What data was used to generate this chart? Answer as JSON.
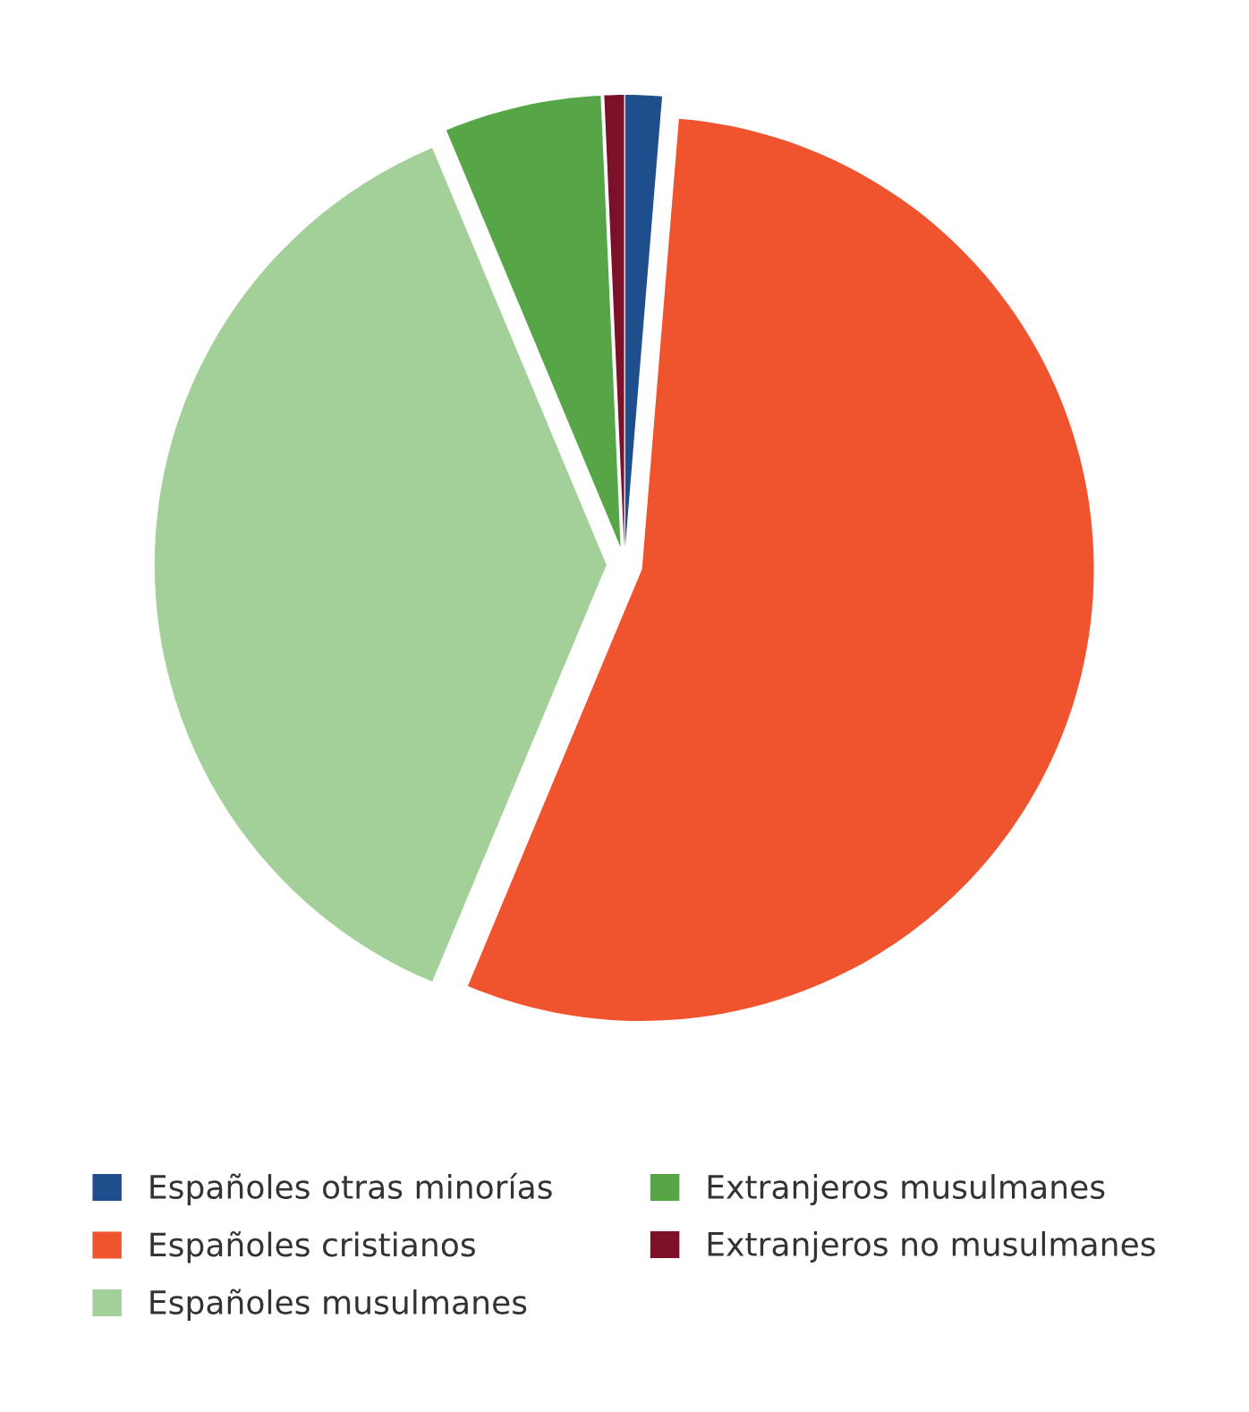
{
  "chart_data": {
    "type": "pie",
    "categories": [
      "Españoles otras minorías",
      "Españoles cristianos",
      "Españoles musulmanes",
      "Extranjeros musulmanes",
      "Extranjeros no musulmanes"
    ],
    "values": [
      1.3,
      55.0,
      37.4,
      5.6,
      0.7
    ],
    "colors": [
      "#1f4e8c",
      "#f0542f",
      "#a3cf98",
      "#56a546",
      "#7b1028"
    ],
    "legend": "bottom"
  }
}
